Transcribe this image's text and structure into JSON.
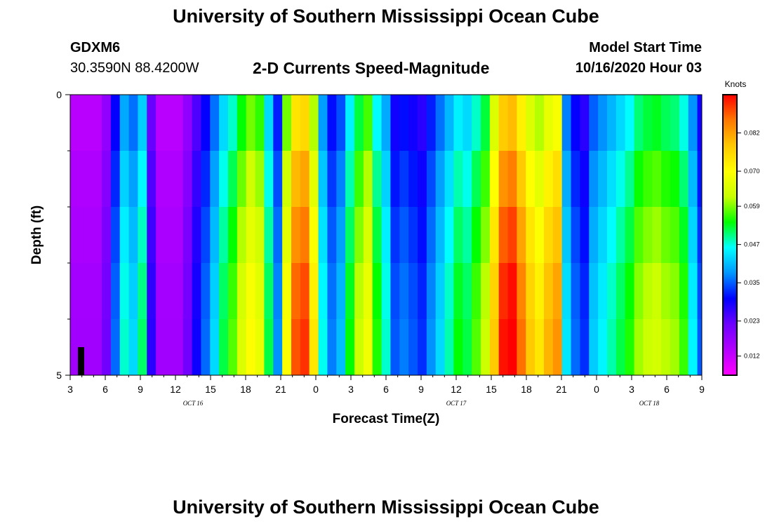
{
  "header": {
    "title": "University of Southern Mississippi Ocean Cube",
    "station_id": "GDXM6",
    "coordinates": "30.3590N 88.4200W",
    "subtitle": "2-D Currents Speed-Magnitude",
    "model_start_label": "Model Start Time",
    "model_start_value": "10/16/2020 Hour 03"
  },
  "footer": {
    "title": "University of Southern Mississippi Ocean Cube"
  },
  "chart_data": {
    "type": "heatmap",
    "title": "2-D Currents Speed-Magnitude",
    "xlabel": "Forecast Time(Z)",
    "ylabel": "Depth (ft)",
    "x_start_hour": 3,
    "hours_per_column": 1,
    "x_tick_labels": [
      "3",
      "6",
      "9",
      "12",
      "15",
      "18",
      "21",
      "0",
      "3",
      "6",
      "9",
      "12",
      "15",
      "18",
      "21",
      "0",
      "3",
      "6",
      "9"
    ],
    "x_date_labels": [
      {
        "label": "OCT 16",
        "hour_index": 10.5
      },
      {
        "label": "OCT 17",
        "hour_index": 33
      },
      {
        "label": "OCT 18",
        "hour_index": 49.5
      }
    ],
    "y_tick_labels": [
      "0",
      "5"
    ],
    "ylim": [
      0,
      5
    ],
    "depth_levels": 5,
    "colorbar": {
      "unit": "Knots",
      "tick_labels": [
        "0.082",
        "0.070",
        "0.059",
        "0.047",
        "0.035",
        "0.023",
        "0.012"
      ],
      "tick_values": [
        0.082,
        0.07,
        0.059,
        0.047,
        0.035,
        0.023,
        0.012
      ],
      "vmin": 0.006,
      "vmax": 0.094,
      "colors": [
        "#ff00ff",
        "#b400ff",
        "#6e00ff",
        "#0000ff",
        "#0096ff",
        "#00ffff",
        "#00ff00",
        "#c8ff00",
        "#ffff00",
        "#ffc800",
        "#ff7800",
        "#ff0000"
      ]
    },
    "profile": [
      0.015,
      0.015,
      0.015,
      0.015,
      0.02,
      0.033,
      0.044,
      0.04,
      0.047,
      0.025,
      0.015,
      0.015,
      0.015,
      0.02,
      0.027,
      0.033,
      0.04,
      0.048,
      0.053,
      0.06,
      0.065,
      0.062,
      0.048,
      0.035,
      0.065,
      0.082,
      0.084,
      0.068,
      0.043,
      0.034,
      0.038,
      0.05,
      0.058,
      0.063,
      0.051,
      0.044,
      0.032,
      0.034,
      0.032,
      0.03,
      0.035,
      0.04,
      0.045,
      0.05,
      0.048,
      0.053,
      0.058,
      0.072,
      0.086,
      0.088,
      0.08,
      0.072,
      0.068,
      0.074,
      0.077,
      0.041,
      0.033,
      0.03,
      0.039,
      0.042,
      0.045,
      0.048,
      0.051,
      0.056,
      0.058,
      0.059,
      0.057,
      0.056,
      0.052,
      0.042,
      0.032
    ],
    "depth_factors": [
      0.9,
      0.97,
      1.02,
      1.06,
      1.08
    ]
  }
}
